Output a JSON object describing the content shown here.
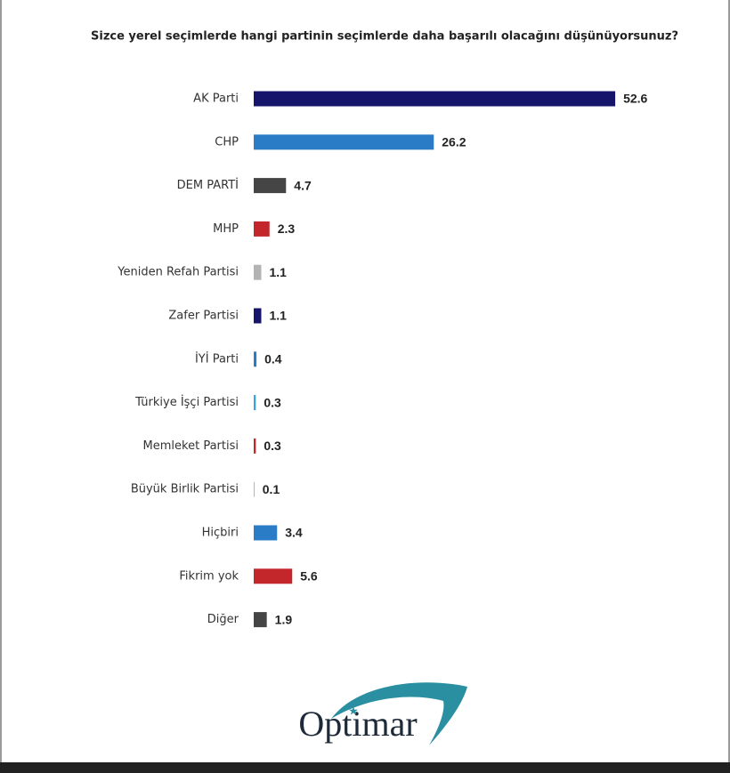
{
  "chart_data": {
    "type": "bar",
    "orientation": "horizontal",
    "title": "Sizce yerel seçimlerde hangi partinin seçimlerde daha başarılı olacağını düşünüyorsunuz?",
    "categories": [
      "AK Parti",
      "CHP",
      "DEM PARTİ",
      "MHP",
      "Yeniden Refah Partisi",
      "Zafer Partisi",
      "İYİ Parti",
      "Türkiye İşçi Partisi",
      "Memleket Partisi",
      "Büyük Birlik Partisi",
      "Hiçbiri",
      "Fikrim yok",
      "Diğer"
    ],
    "values": [
      52.6,
      26.2,
      4.7,
      2.3,
      1.1,
      1.1,
      0.4,
      0.3,
      0.3,
      0.1,
      3.4,
      5.6,
      1.9
    ],
    "colors": [
      "#15156b",
      "#2b7cc6",
      "#454545",
      "#c3262b",
      "#b3b3b3",
      "#15156b",
      "#2b7cc6",
      "#39a3dd",
      "#c3262b",
      "#c9a227",
      "#2b7cc6",
      "#c3262b",
      "#454545"
    ],
    "logo": "Optimar"
  }
}
